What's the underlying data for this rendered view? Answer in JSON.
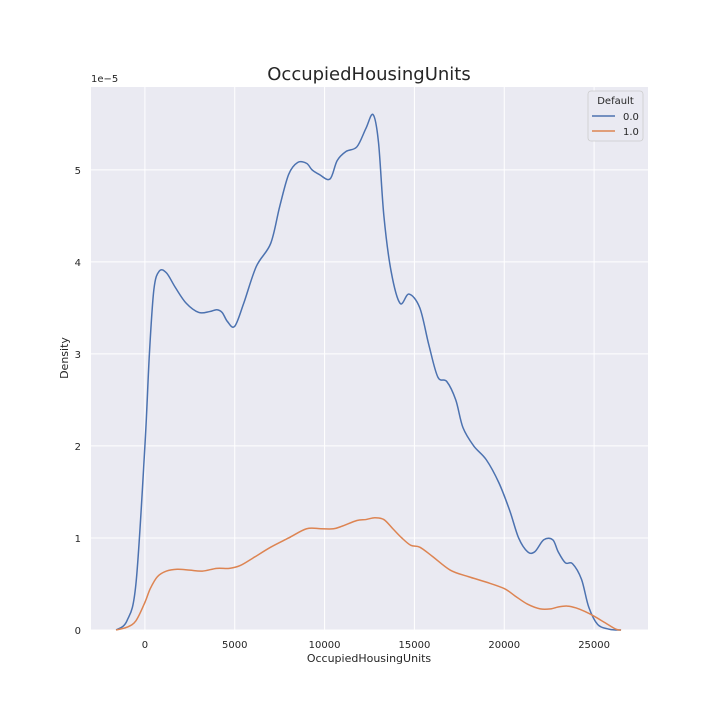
{
  "chart_data": {
    "type": "line",
    "title": "OccupiedHousingUnits",
    "xlabel": "OccupiedHousingUnits",
    "ylabel": "Density",
    "y_offset_label": "1e−5",
    "xlim": [
      -3000,
      28000
    ],
    "ylim": [
      0,
      5.9
    ],
    "x_ticks": [
      0,
      5000,
      10000,
      15000,
      20000,
      25000
    ],
    "x_tick_labels": [
      "0",
      "5000",
      "10000",
      "15000",
      "20000",
      "25000"
    ],
    "y_ticks": [
      0,
      1,
      2,
      3,
      4,
      5
    ],
    "y_tick_labels": [
      "0",
      "1",
      "2",
      "3",
      "4",
      "5"
    ],
    "grid": true,
    "legend": {
      "title": "Default",
      "placement": "top-right"
    },
    "series": [
      {
        "name": "0.0",
        "color": "#4c72b0",
        "x": [
          -1600,
          -1000,
          -500,
          0,
          250,
          500,
          800,
          1200,
          1700,
          2300,
          3000,
          3600,
          4000,
          4300,
          4600,
          5000,
          5500,
          6200,
          7000,
          7500,
          8000,
          8500,
          9000,
          9300,
          9700,
          10300,
          10700,
          11200,
          11800,
          12300,
          12700,
          13000,
          13300,
          13700,
          14200,
          14700,
          15300,
          15800,
          16300,
          16800,
          17300,
          17700,
          18300,
          19000,
          19700,
          20300,
          20800,
          21300,
          21700,
          22200,
          22700,
          23000,
          23400,
          23800,
          24300,
          24700,
          25200,
          25800,
          26200,
          26500
        ],
        "values": [
          0.0,
          0.1,
          0.5,
          2.0,
          3.0,
          3.7,
          3.9,
          3.88,
          3.72,
          3.55,
          3.45,
          3.46,
          3.48,
          3.45,
          3.35,
          3.3,
          3.55,
          3.95,
          4.2,
          4.6,
          4.95,
          5.08,
          5.07,
          5.0,
          4.95,
          4.9,
          5.1,
          5.2,
          5.25,
          5.45,
          5.6,
          5.3,
          4.5,
          3.9,
          3.55,
          3.65,
          3.5,
          3.1,
          2.75,
          2.7,
          2.5,
          2.2,
          2.0,
          1.85,
          1.6,
          1.3,
          1.0,
          0.85,
          0.85,
          0.98,
          0.98,
          0.85,
          0.73,
          0.72,
          0.55,
          0.25,
          0.06,
          0.01,
          0.0,
          0.0
        ],
        "values_note_removed": true
      },
      {
        "name": "1.0",
        "color": "#dd8452",
        "x": [
          -1600,
          -1000,
          -500,
          0,
          300,
          700,
          1200,
          1800,
          2500,
          3200,
          4000,
          4700,
          5300,
          6000,
          7000,
          8000,
          9000,
          9800,
          10500,
          11000,
          11800,
          12300,
          12800,
          13300,
          13800,
          14300,
          14800,
          15300,
          16000,
          17000,
          18000,
          19000,
          20000,
          20600,
          21300,
          22000,
          22600,
          23000,
          23500,
          24000,
          24500,
          25000,
          25600,
          26200,
          26500
        ],
        "values": [
          0.0,
          0.03,
          0.1,
          0.3,
          0.45,
          0.58,
          0.64,
          0.66,
          0.65,
          0.64,
          0.67,
          0.67,
          0.7,
          0.78,
          0.9,
          1.0,
          1.1,
          1.1,
          1.1,
          1.13,
          1.19,
          1.2,
          1.22,
          1.2,
          1.1,
          1.0,
          0.92,
          0.9,
          0.8,
          0.65,
          0.58,
          0.52,
          0.45,
          0.37,
          0.28,
          0.23,
          0.23,
          0.25,
          0.26,
          0.24,
          0.2,
          0.15,
          0.08,
          0.01,
          0.0
        ]
      }
    ]
  }
}
